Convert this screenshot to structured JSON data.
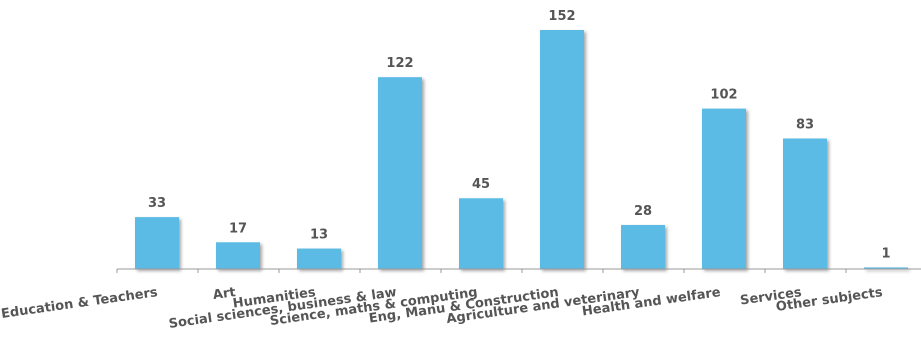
{
  "chart_data": {
    "type": "bar",
    "title": "",
    "xlabel": "",
    "ylabel": "",
    "categories": [
      "Education & Teachers",
      "Art",
      "Humanities",
      "Social sciences, business & law",
      "Science, maths & computing",
      "Eng, Manu & Construction",
      "Agriculture and veterinary",
      "Health and welfare",
      "Services",
      "Other subjects"
    ],
    "values": [
      33,
      17,
      13,
      122,
      45,
      152,
      28,
      102,
      83,
      1
    ],
    "ylim": [
      0,
      152
    ],
    "grid": false,
    "data_labels": true,
    "colors": {
      "bar": "#5BBBE5",
      "axis": "#999999",
      "text": "#555555"
    }
  }
}
